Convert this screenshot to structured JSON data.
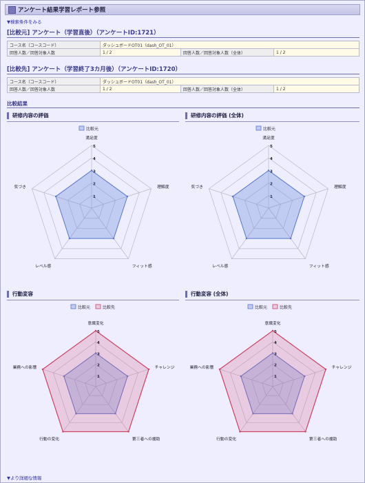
{
  "title": "アンケート結果学習レポート参照",
  "search_link": "▼検索条件をみる",
  "compare1": {
    "heading": "[比較元] アンケート（学習直後）（アンケートID:1721）",
    "rows": [
      [
        "コース名（コースコード）",
        "ダッシュボードOT01（dash_OT_01）",
        "",
        ""
      ],
      [
        "回答人数／回答対象人数",
        "1 / 2",
        "回答人数／回答対象人数（全体）",
        "1 / 2"
      ]
    ]
  },
  "compare2": {
    "heading": "[比較先] アンケート（学習終了3カ月後）（アンケートID:1720）",
    "rows": [
      [
        "コース名（コースコード）",
        "ダッシュボードOT01（dash_OT_01）",
        "",
        ""
      ],
      [
        "回答人数／回答対象人数",
        "1 / 2",
        "回答人数／回答対象人数（全体）",
        "1 / 2"
      ]
    ]
  },
  "result_heading": "比較結果",
  "detail_link": "▼より詳細な情報",
  "colors": {
    "series_base": "#5577cc",
    "series_compare": "#d04060"
  },
  "chart_data": [
    {
      "type": "radar",
      "title": "研修内容の評価",
      "axes": [
        "満足度",
        "理解度",
        "フィット感",
        "レベル感",
        "気づき"
      ],
      "scale": [
        0,
        5
      ],
      "ticks": [
        "1",
        "2",
        "3",
        "4",
        "5"
      ],
      "series": [
        {
          "name": "比較元",
          "values": [
            3,
            3,
            3,
            3,
            3
          ]
        }
      ]
    },
    {
      "type": "radar",
      "title": "研修内容の評価 (全体)",
      "axes": [
        "満足度",
        "理解度",
        "フィット感",
        "レベル感",
        "気づき"
      ],
      "scale": [
        0,
        5
      ],
      "ticks": [
        "1",
        "2",
        "3",
        "4",
        "5"
      ],
      "series": [
        {
          "name": "比較元",
          "values": [
            3,
            3,
            3,
            3,
            3
          ]
        }
      ]
    },
    {
      "type": "radar",
      "title": "行動変容",
      "axes": [
        "意識変化",
        "チャレンジ",
        "第三者への援助",
        "行動の変化",
        "業務への影響"
      ],
      "scale": [
        0,
        5
      ],
      "ticks": [
        "1",
        "2",
        "3",
        "4",
        "5"
      ],
      "series": [
        {
          "name": "比較元",
          "values": [
            3,
            3,
            3,
            3,
            3
          ]
        },
        {
          "name": "比較先",
          "values": [
            5,
            5,
            5,
            5,
            5
          ]
        }
      ]
    },
    {
      "type": "radar",
      "title": "行動変容 (全体)",
      "axes": [
        "意識変化",
        "チャレンジ",
        "第三者への援助",
        "行動の変化",
        "業務への影響"
      ],
      "scale": [
        0,
        5
      ],
      "ticks": [
        "1",
        "2",
        "3",
        "4",
        "5"
      ],
      "series": [
        {
          "name": "比較元",
          "values": [
            3,
            3,
            3,
            3,
            3
          ]
        },
        {
          "name": "比較先",
          "values": [
            5,
            5,
            5,
            5,
            5
          ]
        }
      ]
    }
  ]
}
